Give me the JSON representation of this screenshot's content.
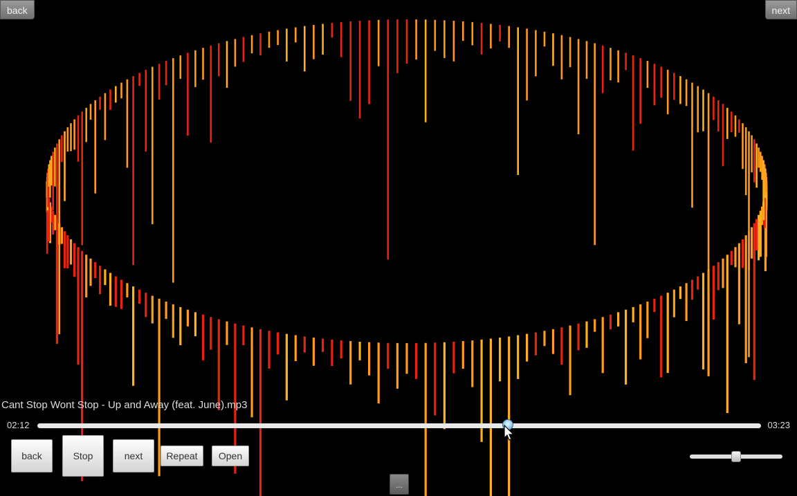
{
  "top_bar": {
    "back_label": "back",
    "next_label": "next"
  },
  "track": {
    "title": "Cant Stop Wont Stop - Up and Away (feat. June).mp3",
    "elapsed": "02:12",
    "total": "03:23",
    "progress": 0.65
  },
  "controls": {
    "back_label": "back",
    "stop_label": "Stop",
    "next_label": "next",
    "repeat_label": "Repeat",
    "open_label": "Open",
    "more_label": "..."
  },
  "volume": {
    "level": 0.5
  },
  "visualizer": {
    "style": "circular-spectrum",
    "colors": {
      "orange": "#ff9a1a",
      "red": "#e82410",
      "amber": "#ffb020"
    }
  }
}
